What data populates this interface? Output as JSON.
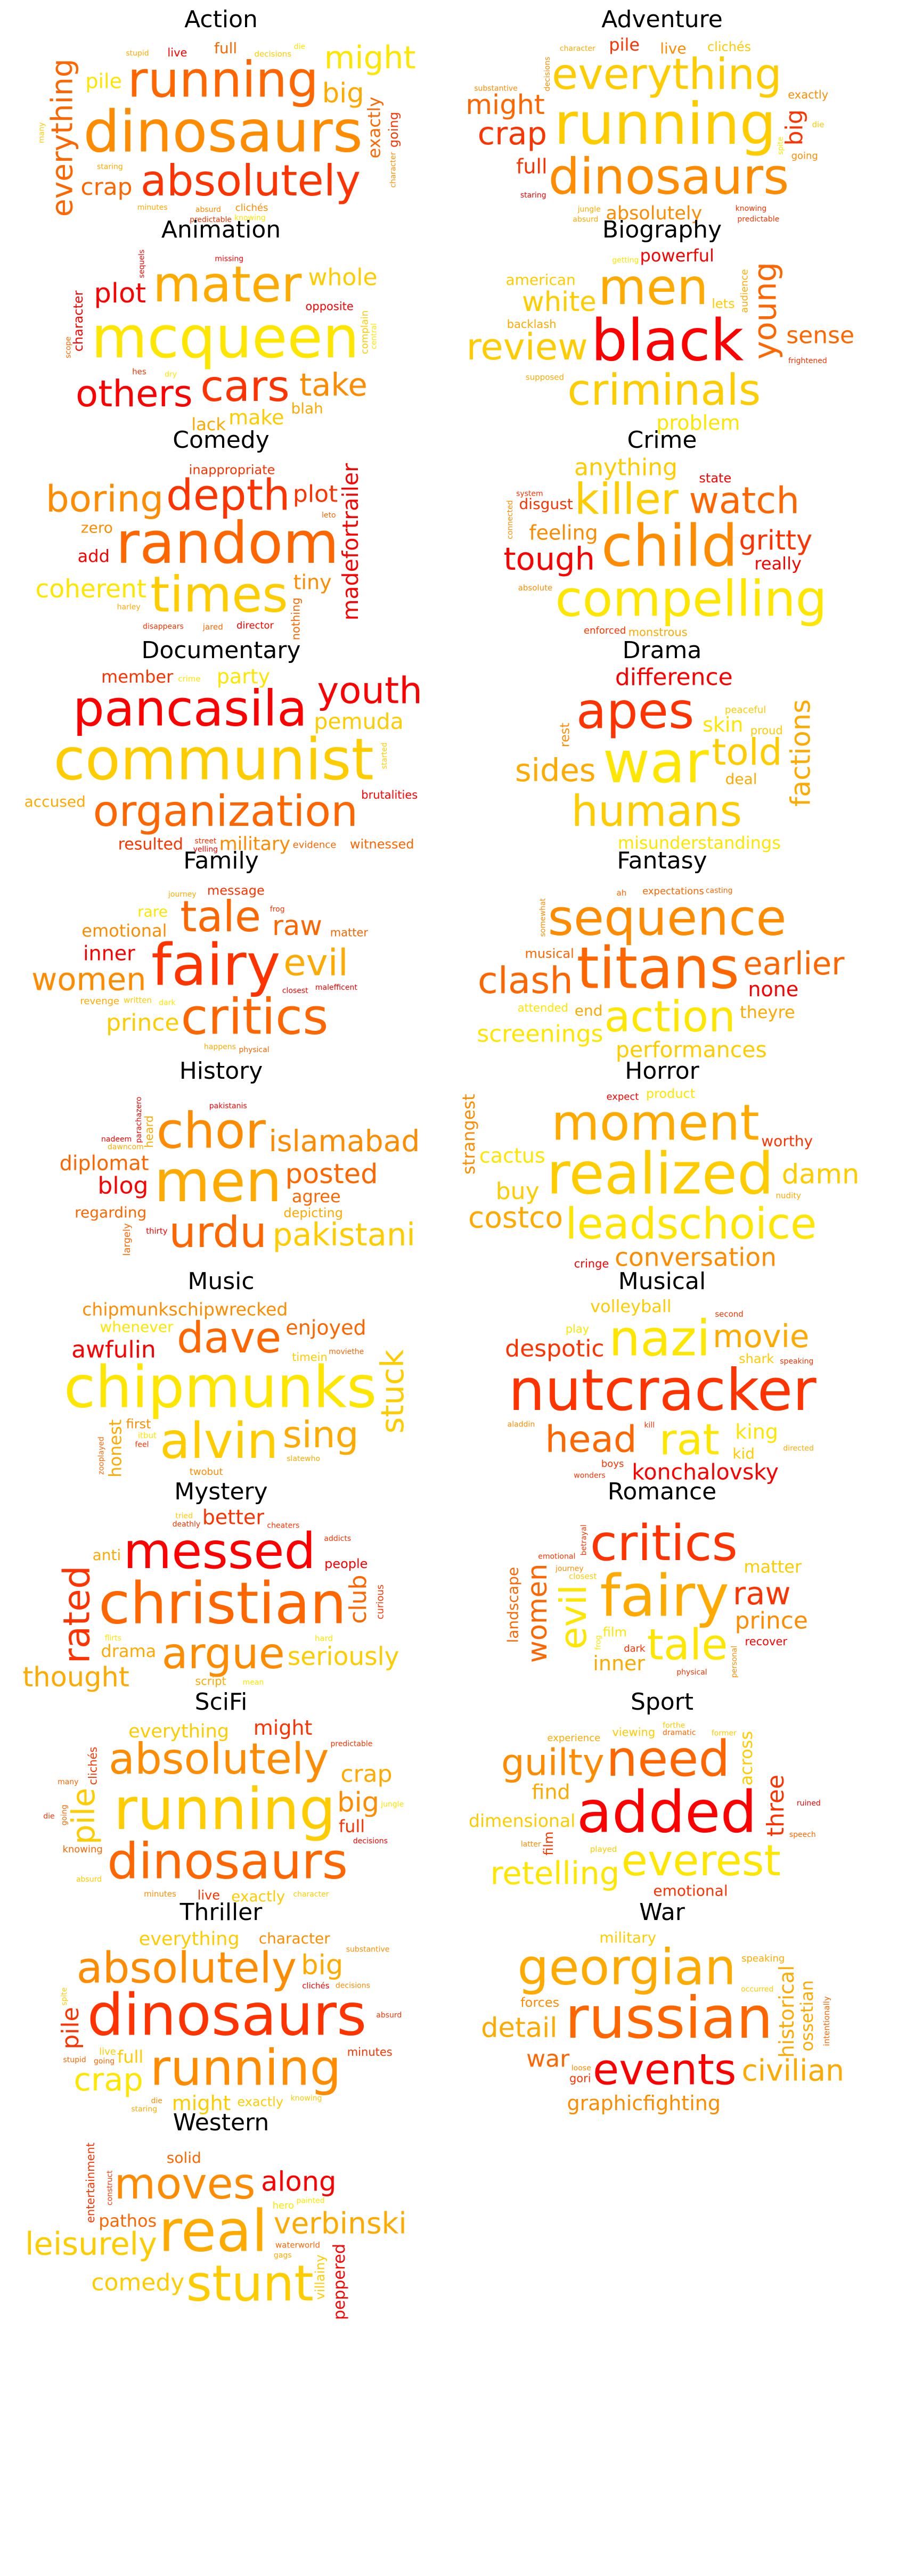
{
  "palette": [
    "#ff0000",
    "#ff3300",
    "#ff6600",
    "#ff8c00",
    "#ffaa00",
    "#ffcc00",
    "#ffe600"
  ],
  "chart_data": {
    "type": "wordcloud",
    "panels": [
      {
        "genre": "Action",
        "words": [
          "dinosaurs",
          "running",
          "absolutely",
          "everything",
          "might",
          "big",
          "crap",
          "pile",
          "exactly",
          "full",
          "going",
          "live",
          "clichés",
          "decisions",
          "absurd",
          "minutes",
          "knowing",
          "character",
          "stupid",
          "many",
          "predictable",
          "staring",
          "die"
        ]
      },
      {
        "genre": "Adventure",
        "words": [
          "running",
          "dinosaurs",
          "everything",
          "absolutely",
          "crap",
          "might",
          "big",
          "full",
          "pile",
          "live",
          "clichés",
          "exactly",
          "going",
          "die",
          "knowing",
          "character",
          "decisions",
          "predictable",
          "absurd",
          "substantive",
          "spite",
          "jungle",
          "staring"
        ]
      },
      {
        "genre": "Animation",
        "words": [
          "mcqueen",
          "mater",
          "cars",
          "others",
          "take",
          "plot",
          "whole",
          "make",
          "lack",
          "blah",
          "character",
          "opposite",
          "complain",
          "hes",
          "dry",
          "scope",
          "sequels",
          "missing",
          "central"
        ]
      },
      {
        "genre": "Biography",
        "words": [
          "black",
          "men",
          "criminals",
          "review",
          "young",
          "white",
          "sense",
          "problem",
          "powerful",
          "american",
          "lets",
          "backlash",
          "audience",
          "supposed",
          "frightened",
          "getting"
        ]
      },
      {
        "genre": "Comedy",
        "words": [
          "random",
          "times",
          "depth",
          "boring",
          "coherent",
          "madefortrailer",
          "plot",
          "tiny",
          "add",
          "zero",
          "inappropriate",
          "nothing",
          "director",
          "jared",
          "harley",
          "disappears",
          "leto"
        ]
      },
      {
        "genre": "Crime",
        "words": [
          "child",
          "compelling",
          "killer",
          "watch",
          "tough",
          "gritty",
          "anything",
          "feeling",
          "really",
          "disgust",
          "state",
          "monstrous",
          "enforced",
          "absolute",
          "connected",
          "system"
        ]
      },
      {
        "genre": "Documentary",
        "words": [
          "communist",
          "pancasila",
          "organization",
          "youth",
          "party",
          "pemuda",
          "military",
          "resulted",
          "member",
          "accused",
          "witnessed",
          "brutalities",
          "evidence",
          "crime",
          "street",
          "started",
          "yelling"
        ]
      },
      {
        "genre": "Drama",
        "words": [
          "war",
          "apes",
          "humans",
          "told",
          "sides",
          "factions",
          "difference",
          "skin",
          "misunderstandings",
          "deal",
          "rest",
          "proud",
          "peaceful"
        ]
      },
      {
        "genre": "Family",
        "words": [
          "fairy",
          "critics",
          "tale",
          "evil",
          "women",
          "raw",
          "prince",
          "inner",
          "emotional",
          "rare",
          "message",
          "matter",
          "revenge",
          "written",
          "malefficent",
          "dark",
          "frog",
          "closest",
          "happens",
          "physical",
          "journey"
        ]
      },
      {
        "genre": "Fantasy",
        "words": [
          "titans",
          "sequence",
          "action",
          "clash",
          "earlier",
          "performances",
          "screenings",
          "none",
          "theyre",
          "end",
          "musical",
          "attended",
          "expectations",
          "ah",
          "casting",
          "somewhat"
        ]
      },
      {
        "genre": "History",
        "words": [
          "men",
          "chor",
          "urdu",
          "islamabad",
          "pakistani",
          "posted",
          "blog",
          "diplomat",
          "agree",
          "regarding",
          "depicting",
          "heard",
          "largely",
          "thirty",
          "dawncom",
          "parachazero",
          "nadeem",
          "pakistanis"
        ]
      },
      {
        "genre": "Horror",
        "words": [
          "realized",
          "moment",
          "leadschoice",
          "costco",
          "conversation",
          "damn",
          "buy",
          "cactus",
          "strangest",
          "worthy",
          "product",
          "cringe",
          "expect",
          "nudity"
        ]
      },
      {
        "genre": "Music",
        "words": [
          "chipmunks",
          "alvin",
          "dave",
          "sing",
          "stuck",
          "chipmunkschipwrecked",
          "awfulin",
          "enjoyed",
          "honest",
          "whenever",
          "first",
          "timein",
          "twobut",
          "itbut",
          "moviethe",
          "zooplayed",
          "slatewho",
          "feel"
        ]
      },
      {
        "genre": "Musical",
        "words": [
          "nutcracker",
          "nazi",
          "rat",
          "head",
          "movie",
          "konchalovsky",
          "despotic",
          "king",
          "volleyball",
          "kid",
          "shark",
          "play",
          "boys",
          "second",
          "aladdin",
          "directed",
          "kill",
          "speaking",
          "wonders"
        ]
      },
      {
        "genre": "Mystery",
        "words": [
          "christian",
          "messed",
          "argue",
          "rated",
          "seriously",
          "thought",
          "club",
          "better",
          "drama",
          "anti",
          "people",
          "script",
          "curious",
          "hard",
          "mean",
          "deathly",
          "flirts",
          "cheaters",
          "tried",
          "addicts"
        ]
      },
      {
        "genre": "Romance",
        "words": [
          "fairy",
          "critics",
          "tale",
          "evil",
          "raw",
          "women",
          "prince",
          "inner",
          "matter",
          "landscape",
          "film",
          "recover",
          "dark",
          "closest",
          "journey",
          "physical",
          "frog",
          "emotional",
          "personal",
          "betrayal"
        ]
      },
      {
        "genre": "SciFi",
        "words": [
          "running",
          "dinosaurs",
          "absolutely",
          "everything",
          "pile",
          "big",
          "crap",
          "might",
          "full",
          "exactly",
          "live",
          "clichés",
          "knowing",
          "minutes",
          "predictable",
          "going",
          "many",
          "decisions",
          "character",
          "absurd",
          "die",
          "jungle"
        ]
      },
      {
        "genre": "Sport",
        "words": [
          "added",
          "need",
          "everest",
          "guilty",
          "retelling",
          "dimensional",
          "three",
          "find",
          "across",
          "emotional",
          "film",
          "viewing",
          "experience",
          "played",
          "dramatic",
          "ruined",
          "latter",
          "forthe",
          "former",
          "speech"
        ]
      },
      {
        "genre": "Thriller",
        "words": [
          "dinosaurs",
          "running",
          "absolutely",
          "everything",
          "crap",
          "big",
          "pile",
          "might",
          "full",
          "character",
          "exactly",
          "minutes",
          "live",
          "clichés",
          "going",
          "knowing",
          "decisions",
          "absurd",
          "die",
          "stupid",
          "spite",
          "staring",
          "substantive"
        ]
      },
      {
        "genre": "War",
        "words": [
          "russian",
          "georgian",
          "events",
          "civilian",
          "graphicfighting",
          "detail",
          "war",
          "historical",
          "ossetian",
          "military",
          "forces",
          "gori",
          "speaking",
          "intentionally",
          "occurred",
          "loose"
        ]
      },
      {
        "genre": "Western",
        "words": [
          "real",
          "stunt",
          "moves",
          "verbinski",
          "leisurely",
          "along",
          "comedy",
          "peppered",
          "pathos",
          "solid",
          "villainy",
          "entertainment",
          "hero",
          "waterworld",
          "construct",
          "gags",
          "painted"
        ]
      }
    ]
  }
}
